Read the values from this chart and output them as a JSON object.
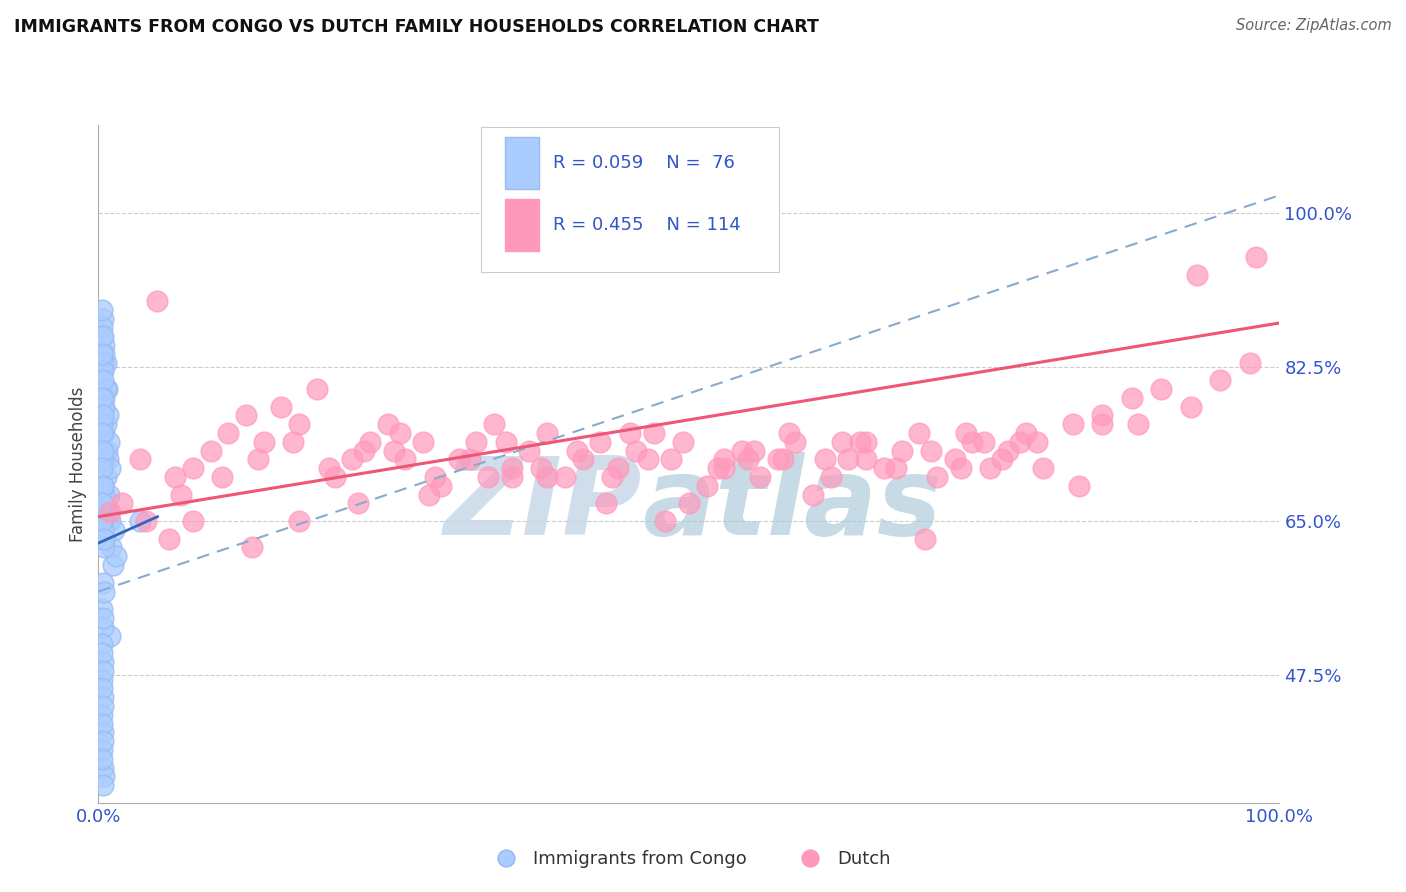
{
  "title": "IMMIGRANTS FROM CONGO VS DUTCH FAMILY HOUSEHOLDS CORRELATION CHART",
  "source": "Source: ZipAtlas.com",
  "ylabel": "Family Households",
  "y_tick_values": [
    47.5,
    65.0,
    82.5,
    100.0
  ],
  "y_tick_labels": [
    "47.5%",
    "65.0%",
    "82.5%",
    "100.0%"
  ],
  "x_tick_values": [
    0,
    100
  ],
  "x_tick_labels": [
    "0.0%",
    "100.0%"
  ],
  "xlim": [
    0.0,
    100.0
  ],
  "ylim": [
    33.0,
    110.0
  ],
  "legend_label1": "Immigrants from Congo",
  "legend_label2": "Dutch",
  "R1": 0.059,
  "N1": 76,
  "R2": 0.455,
  "N2": 114,
  "color_blue": "#99BBEE",
  "color_blue_fill": "#AACCFF",
  "color_pink": "#FF99BB",
  "color_blue_line": "#3366BB",
  "color_pink_line": "#EE5577",
  "color_dashed": "#88AACC",
  "watermark_zip_color": "#C8D8E8",
  "watermark_atlas_color": "#A8C8D8",
  "background_color": "#FFFFFF",
  "blue_line_x0": 0.0,
  "blue_line_x1": 5.0,
  "blue_line_y0": 62.5,
  "blue_line_y1": 65.5,
  "pink_line_x0": 0.0,
  "pink_line_x1": 100.0,
  "pink_line_y0": 65.5,
  "pink_line_y1": 87.5,
  "dash_line_x0": 0.0,
  "dash_line_x1": 100.0,
  "dash_line_y0": 57.0,
  "dash_line_y1": 102.0,
  "blue_x": [
    0.3,
    0.4,
    0.5,
    0.5,
    0.5,
    0.6,
    0.6,
    0.6,
    0.7,
    0.7,
    0.7,
    0.8,
    0.8,
    0.8,
    0.9,
    0.9,
    1.0,
    1.0,
    1.0,
    1.1,
    1.2,
    1.3,
    1.5,
    0.4,
    0.5,
    0.6,
    0.3,
    0.4,
    0.5,
    0.3,
    0.4,
    0.5,
    0.3,
    0.4,
    0.5,
    0.3,
    0.4,
    0.3,
    0.4,
    0.5,
    0.4,
    0.3,
    0.4,
    0.3,
    0.4,
    0.3,
    0.4,
    0.3,
    0.4,
    0.3,
    0.4,
    0.5,
    0.3,
    0.4,
    0.3,
    0.4,
    0.3,
    0.4,
    0.3,
    0.4,
    0.3,
    0.4,
    0.3,
    0.3,
    0.5,
    0.4,
    0.3,
    0.4,
    0.3,
    0.4,
    0.3,
    0.4,
    0.3,
    0.4,
    3.5,
    0.5
  ],
  "blue_y": [
    82,
    78,
    85,
    75,
    68,
    83,
    76,
    70,
    80,
    73,
    65,
    77,
    72,
    66,
    74,
    68,
    71,
    65,
    52,
    62,
    60,
    64,
    61,
    88,
    84,
    80,
    87,
    83,
    79,
    86,
    82,
    78,
    76,
    72,
    68,
    73,
    69,
    67,
    64,
    62,
    58,
    55,
    53,
    51,
    49,
    47,
    45,
    43,
    41,
    39,
    37,
    36,
    89,
    86,
    84,
    81,
    79,
    77,
    75,
    73,
    71,
    69,
    67,
    65,
    57,
    54,
    50,
    48,
    46,
    44,
    42,
    40,
    38,
    35,
    65,
    63
  ],
  "pink_x": [
    1.0,
    2.0,
    3.5,
    5.0,
    6.5,
    8.0,
    9.5,
    11.0,
    12.5,
    14.0,
    15.5,
    17.0,
    18.5,
    20.0,
    21.5,
    23.0,
    24.5,
    26.0,
    27.5,
    29.0,
    30.5,
    32.0,
    33.5,
    35.0,
    36.5,
    38.0,
    39.5,
    41.0,
    42.5,
    44.0,
    45.5,
    47.0,
    48.5,
    50.0,
    51.5,
    53.0,
    54.5,
    56.0,
    57.5,
    59.0,
    60.5,
    62.0,
    63.5,
    65.0,
    66.5,
    68.0,
    69.5,
    71.0,
    72.5,
    74.0,
    75.5,
    77.0,
    78.5,
    80.0,
    4.0,
    7.0,
    10.5,
    13.5,
    16.5,
    19.5,
    22.5,
    25.5,
    28.5,
    31.5,
    34.5,
    37.5,
    40.5,
    43.5,
    46.5,
    49.5,
    52.5,
    55.5,
    58.5,
    61.5,
    64.5,
    67.5,
    70.5,
    73.5,
    76.5,
    79.5,
    82.5,
    85.0,
    87.5,
    90.0,
    92.5,
    95.0,
    97.5,
    6.0,
    22.0,
    43.0,
    53.0,
    33.0,
    63.0,
    73.0,
    83.0,
    17.0,
    38.0,
    58.0,
    78.0,
    88.0,
    8.0,
    25.0,
    45.0,
    65.0,
    75.0,
    85.0,
    35.0,
    55.0,
    48.0,
    70.0,
    13.0,
    93.0,
    98.0,
    28.0
  ],
  "pink_y": [
    66,
    67,
    72,
    90,
    70,
    71,
    73,
    75,
    77,
    74,
    78,
    76,
    80,
    70,
    72,
    74,
    76,
    72,
    74,
    69,
    72,
    74,
    76,
    71,
    73,
    75,
    70,
    72,
    74,
    71,
    73,
    75,
    72,
    67,
    69,
    71,
    73,
    70,
    72,
    74,
    68,
    70,
    72,
    74,
    71,
    73,
    75,
    70,
    72,
    74,
    71,
    73,
    75,
    71,
    65,
    68,
    70,
    72,
    74,
    71,
    73,
    75,
    70,
    72,
    74,
    71,
    73,
    70,
    72,
    74,
    71,
    73,
    75,
    72,
    74,
    71,
    73,
    75,
    72,
    74,
    76,
    77,
    79,
    80,
    78,
    81,
    83,
    63,
    67,
    67,
    72,
    70,
    74,
    71,
    69,
    65,
    70,
    72,
    74,
    76,
    65,
    73,
    75,
    72,
    74,
    76,
    70,
    72,
    65,
    63,
    62,
    93,
    95,
    68
  ]
}
